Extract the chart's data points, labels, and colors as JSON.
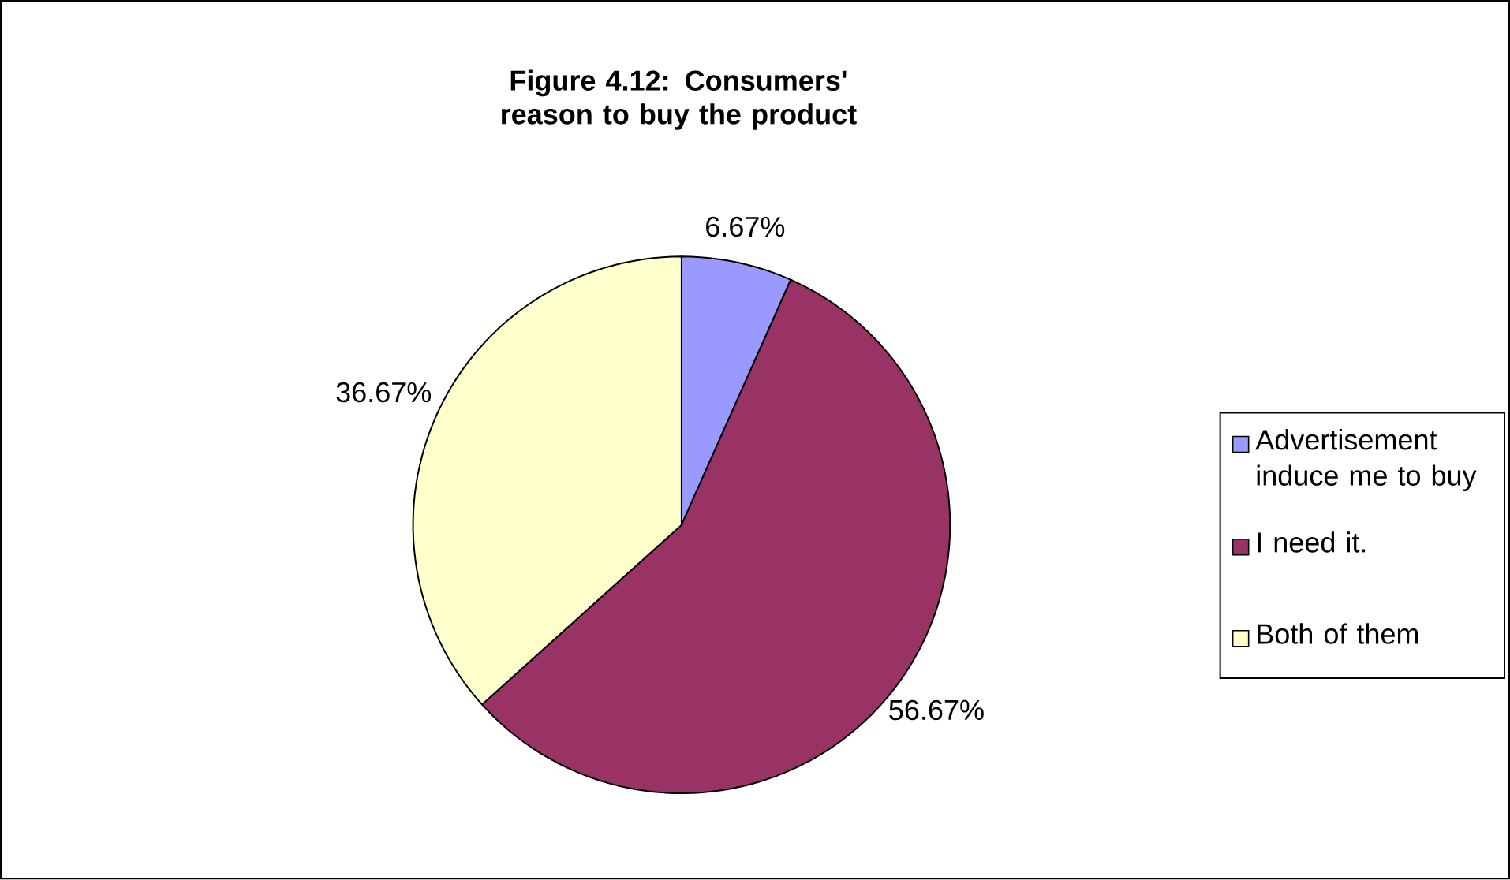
{
  "chart_data": {
    "type": "pie",
    "title": "Figure 4.12: Consumers' reason to buy the product",
    "categories": [
      "Advertisement induce me to buy",
      "I need it.",
      "Both of them"
    ],
    "values": [
      6.67,
      56.67,
      36.67
    ],
    "colors": [
      "#9999ff",
      "#993366",
      "#ffffcc"
    ],
    "value_labels": [
      "6.67%",
      "56.67%",
      "36.67%"
    ],
    "legend": "right"
  }
}
